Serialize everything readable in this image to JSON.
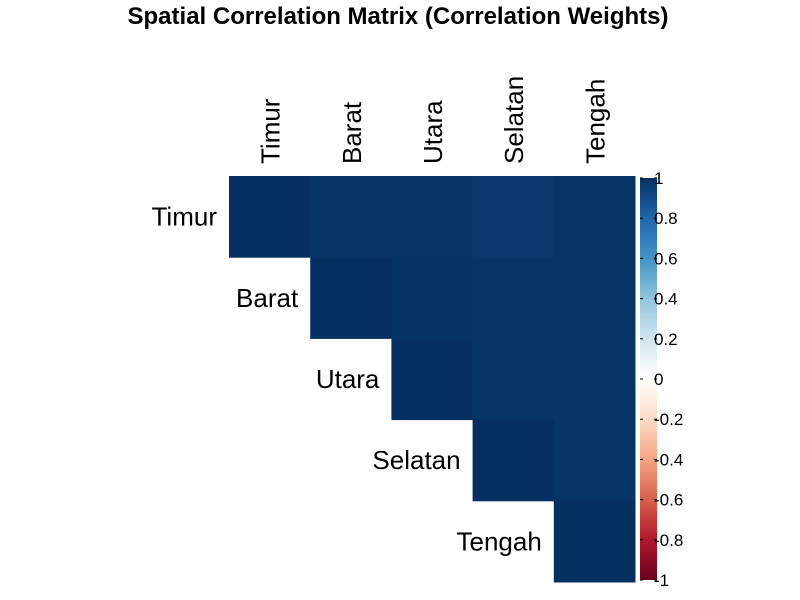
{
  "chart_data": {
    "type": "heatmap",
    "title": "Spatial Correlation Matrix (Correlation Weights)",
    "variables": [
      "Timur",
      "Barat",
      "Utara",
      "Selatan",
      "Tengah"
    ],
    "layout": "upper-triangle",
    "matrix": [
      [
        1.0,
        0.98,
        0.98,
        0.97,
        0.98
      ],
      [
        0.98,
        1.0,
        0.99,
        0.98,
        0.98
      ],
      [
        0.98,
        0.99,
        1.0,
        0.98,
        0.98
      ],
      [
        0.97,
        0.98,
        0.98,
        1.0,
        0.98
      ],
      [
        0.98,
        0.98,
        0.98,
        0.98,
        1.0
      ]
    ],
    "color_scale": {
      "min": -1,
      "max": 1,
      "ticks": [
        "1",
        "0.8",
        "0.6",
        "0.4",
        "0.2",
        "0",
        "-0.2",
        "-0.4",
        "-0.6",
        "-0.8",
        "-1"
      ],
      "tick_values": [
        1,
        0.8,
        0.6,
        0.4,
        0.2,
        0,
        -0.2,
        -0.4,
        -0.6,
        -0.8,
        -1
      ],
      "colors": [
        "#67001F",
        "#B2182B",
        "#D6604D",
        "#F4A582",
        "#FDDBC7",
        "#FFFFFF",
        "#D1E5F0",
        "#92C5DE",
        "#4393C3",
        "#2166AC",
        "#053061"
      ]
    },
    "grid": false
  }
}
